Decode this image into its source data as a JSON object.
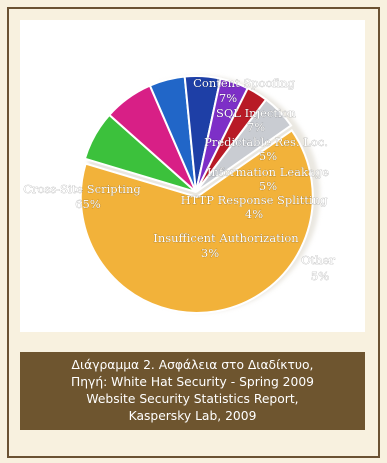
{
  "caption": {
    "line1": "Διάγραμμα 2. Ασφάλεια στο Διαδίκτυο,",
    "line2": "Πηγή: White Hat Security - Spring 2009",
    "line3": "Website Security Statistics Report,",
    "line4": "Kaspersky Lab, 2009"
  },
  "chart_data": {
    "type": "pie",
    "slices": [
      {
        "name": "Cross-Site Scripting",
        "value": 65,
        "label": "65%",
        "color": "#f2b23a"
      },
      {
        "name": "Content Spoofing",
        "value": 7,
        "label": "7%",
        "color": "#3cc13c"
      },
      {
        "name": "SQL Injection",
        "value": 7,
        "label": "7%",
        "color": "#d81f86"
      },
      {
        "name": "Predictable Res. Loc.",
        "value": 5,
        "label": "5%",
        "color": "#2166c8"
      },
      {
        "name": "Information Leakage",
        "value": 5,
        "label": "5%",
        "color": "#1e3fa6"
      },
      {
        "name": "HTTP Response Splitting",
        "value": 4,
        "label": "4%",
        "color": "#7d2fc7"
      },
      {
        "name": "Insufficent Authorization",
        "value": 3,
        "label": "3%",
        "color": "#b81a26"
      },
      {
        "name": "Other",
        "value": 5,
        "label": "5%",
        "color": "#c9ccd2"
      }
    ]
  }
}
